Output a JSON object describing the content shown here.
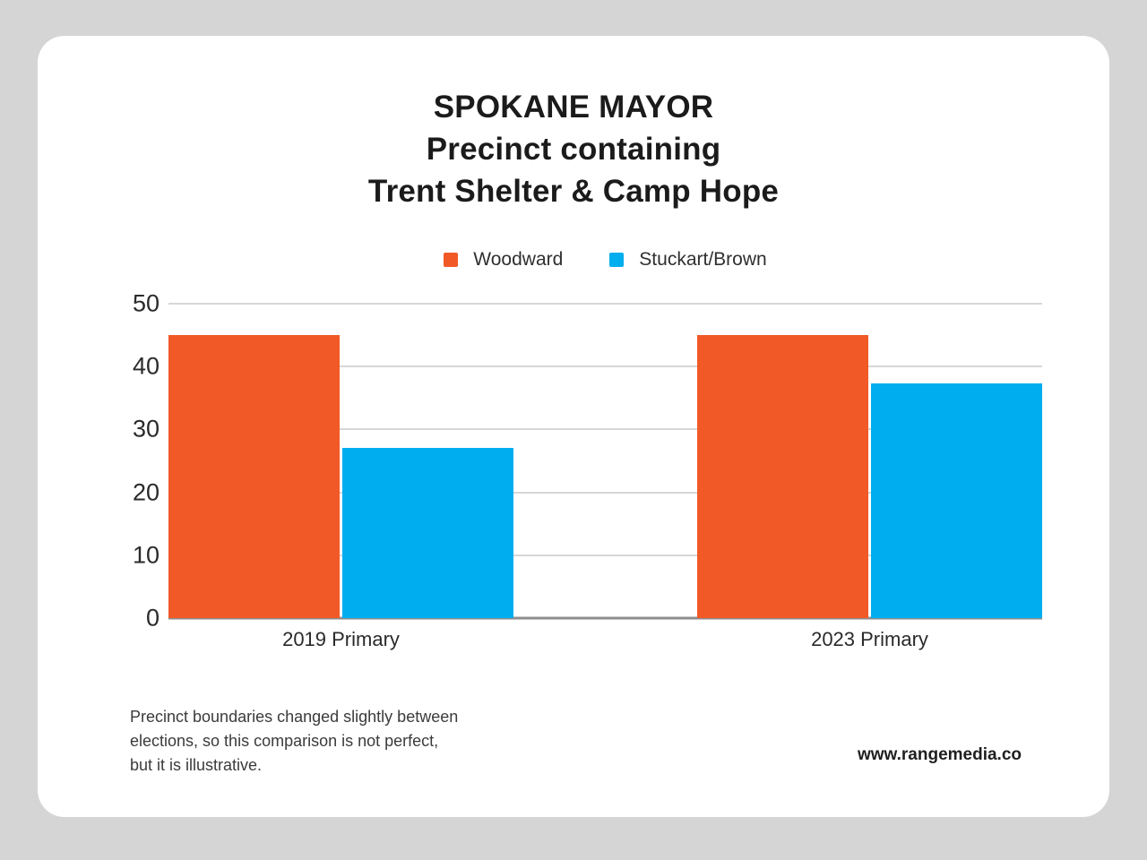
{
  "title": {
    "lines": [
      "SPOKANE MAYOR",
      "Precinct containing",
      "Trent Shelter & Camp Hope"
    ]
  },
  "chart_data": {
    "type": "bar",
    "categories": [
      "2019 Primary",
      "2023 Primary"
    ],
    "series": [
      {
        "name": "Woodward",
        "color": "#F15A27",
        "values": [
          45,
          45
        ]
      },
      {
        "name": "Stuckart/Brown",
        "color": "#00ADEF",
        "values": [
          27,
          37.3
        ]
      }
    ],
    "ylim": [
      0,
      50
    ],
    "yticks": [
      0,
      10,
      20,
      30,
      40,
      50
    ],
    "grid": true,
    "legend_position": "top-center",
    "xlabel": "",
    "ylabel": ""
  },
  "footnote": {
    "lines": [
      "Precinct boundaries changed slightly between",
      "elections, so this comparison is not perfect,",
      "but it is illustrative."
    ]
  },
  "website": "www.rangemedia.co",
  "colors": {
    "page_background": "#d5d5d5",
    "card_background": "#ffffff",
    "gridline": "#d7d7d7",
    "baseline": "#8e8e8e",
    "woodward_orange": "#F15A27",
    "stuckart_blue": "#00ADEF"
  }
}
